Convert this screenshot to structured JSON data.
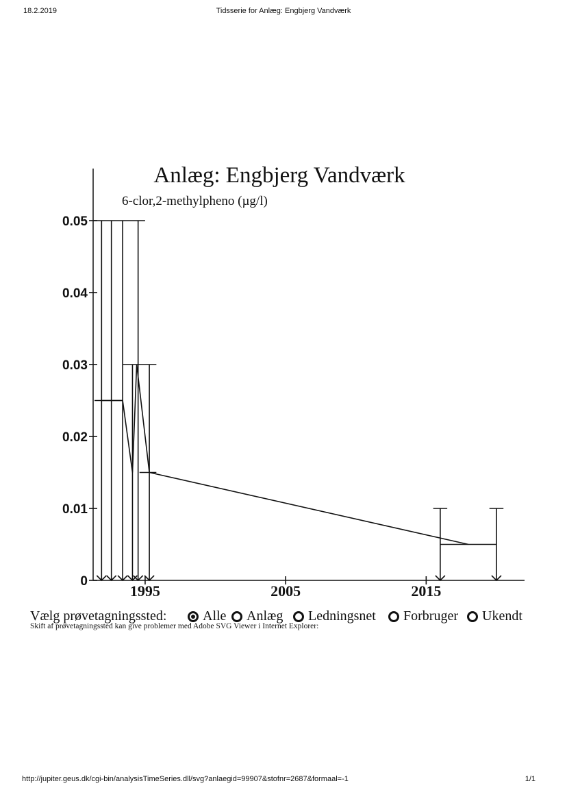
{
  "print_header": {
    "date": "18.2.2019",
    "title": "Tidsserie for Anlæg: Engbjerg Vandværk"
  },
  "print_footer": {
    "url": "http://jupiter.geus.dk/cgi-bin/analysisTimeSeries.dll/svg?anlaegid=99907&stofnr=2687&formaal=-1",
    "page": "1/1"
  },
  "chart_data": {
    "type": "line",
    "title": "Anlæg: Engbjerg Vandværk",
    "subtitle": "6-clor,2-methylpheno (µg/l)",
    "xlabel": "",
    "ylabel": "",
    "xlim": [
      1991.3,
      2022.0
    ],
    "ylim": [
      0,
      0.05
    ],
    "x_ticks": [
      1995,
      2005,
      2015
    ],
    "y_ticks": [
      0,
      0.01,
      0.02,
      0.03,
      0.04,
      0.05
    ],
    "y_tick_labels": [
      "0",
      "0.01",
      "0.02",
      "0.03",
      "0.04",
      "0.05"
    ],
    "grid": false,
    "series": [
      {
        "x": [
          1991.9,
          1993.4,
          1994.1,
          1994.4,
          1995.3,
          2018.0
        ],
        "values": [
          0.025,
          0.025,
          0.015,
          0.03,
          0.015,
          0.005
        ]
      }
    ],
    "range_bars": [
      {
        "x": 1991.9,
        "upper": 0.05,
        "lower": 0
      },
      {
        "x": 1992.6,
        "upper": 0.05,
        "lower": 0
      },
      {
        "x": 1993.4,
        "upper": 0.05,
        "lower": 0
      },
      {
        "x": 1994.1,
        "upper": 0.03,
        "lower": 0
      },
      {
        "x": 1994.5,
        "upper": 0.05,
        "lower": 0
      },
      {
        "x": 1995.3,
        "upper": 0.03,
        "lower": 0
      },
      {
        "x": 2016.0,
        "upper": 0.01,
        "lower": 0
      },
      {
        "x": 2020.0,
        "upper": 0.01,
        "lower": 0
      }
    ],
    "caps": [
      {
        "y": 0.05,
        "x_from": 1991.3,
        "x_to": 1995.0
      },
      {
        "y": 0.03,
        "x_from": 1993.4,
        "x_to": 1995.8
      },
      {
        "y": 0.015,
        "x_from": 1994.6,
        "x_to": 1995.8
      },
      {
        "y": 0.025,
        "x_from": 1991.4,
        "x_to": 1993.4
      },
      {
        "y": 0.005,
        "x_from": 2016.0,
        "x_to": 2020.0
      },
      {
        "y": 0.01,
        "x_from": 2015.5,
        "x_to": 2016.5
      },
      {
        "y": 0.01,
        "x_from": 2019.5,
        "x_to": 2020.5
      }
    ]
  },
  "selector": {
    "label": "Vælg prøvetagningssted:",
    "options": [
      {
        "label": "Alle",
        "checked": true
      },
      {
        "label": "Anlæg",
        "checked": false
      },
      {
        "label": "Ledningsnet",
        "checked": false
      },
      {
        "label": "Forbruger",
        "checked": false
      },
      {
        "label": "Ukendt",
        "checked": false
      }
    ],
    "note": "Skift af prøvetagningssted kan give problemer med Adobe SVG Viewer i Internet Explorer:"
  }
}
